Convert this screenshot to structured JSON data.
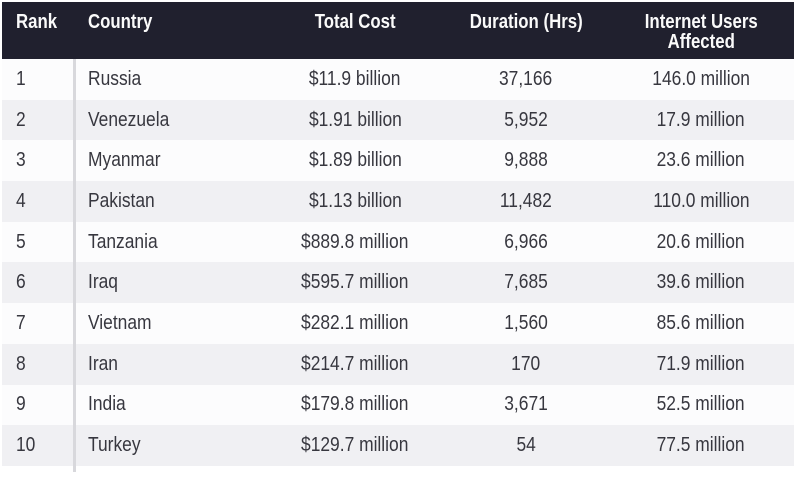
{
  "table": {
    "columns": {
      "rank": "Rank",
      "country": "Country",
      "cost": "Total Cost",
      "duration": "Duration (Hrs)",
      "users_line1": "Internet Users",
      "users_line2": "Affected"
    },
    "rows": [
      {
        "rank": "1",
        "country": "Russia",
        "cost": "$11.9 billion",
        "duration": "37,166",
        "users": "146.0 million"
      },
      {
        "rank": "2",
        "country": "Venezuela",
        "cost": "$1.91 billion",
        "duration": "5,952",
        "users": "17.9 million"
      },
      {
        "rank": "3",
        "country": "Myanmar",
        "cost": "$1.89 billion",
        "duration": "9,888",
        "users": "23.6 million"
      },
      {
        "rank": "4",
        "country": "Pakistan",
        "cost": "$1.13 billion",
        "duration": "11,482",
        "users": "110.0 million"
      },
      {
        "rank": "5",
        "country": "Tanzania",
        "cost": "$889.8 million",
        "duration": "6,966",
        "users": "20.6 million"
      },
      {
        "rank": "6",
        "country": "Iraq",
        "cost": "$595.7 million",
        "duration": "7,685",
        "users": "39.6 million"
      },
      {
        "rank": "7",
        "country": "Vietnam",
        "cost": "$282.1 million",
        "duration": "1,560",
        "users": "85.6 million"
      },
      {
        "rank": "8",
        "country": "Iran",
        "cost": "$214.7 million",
        "duration": "170",
        "users": "71.9 million"
      },
      {
        "rank": "9",
        "country": "India",
        "cost": "$179.8 million",
        "duration": "3,671",
        "users": "52.5 million"
      },
      {
        "rank": "10",
        "country": "Turkey",
        "cost": "$129.7 million",
        "duration": "54",
        "users": "77.5 million"
      }
    ]
  },
  "colors": {
    "header_bg": "#20202e",
    "header_text": "#fafafa",
    "row_base": "#fcfcfd",
    "row_alt": "#f0f0f3",
    "text": "#37373f",
    "divider": "#d8d8dc"
  }
}
